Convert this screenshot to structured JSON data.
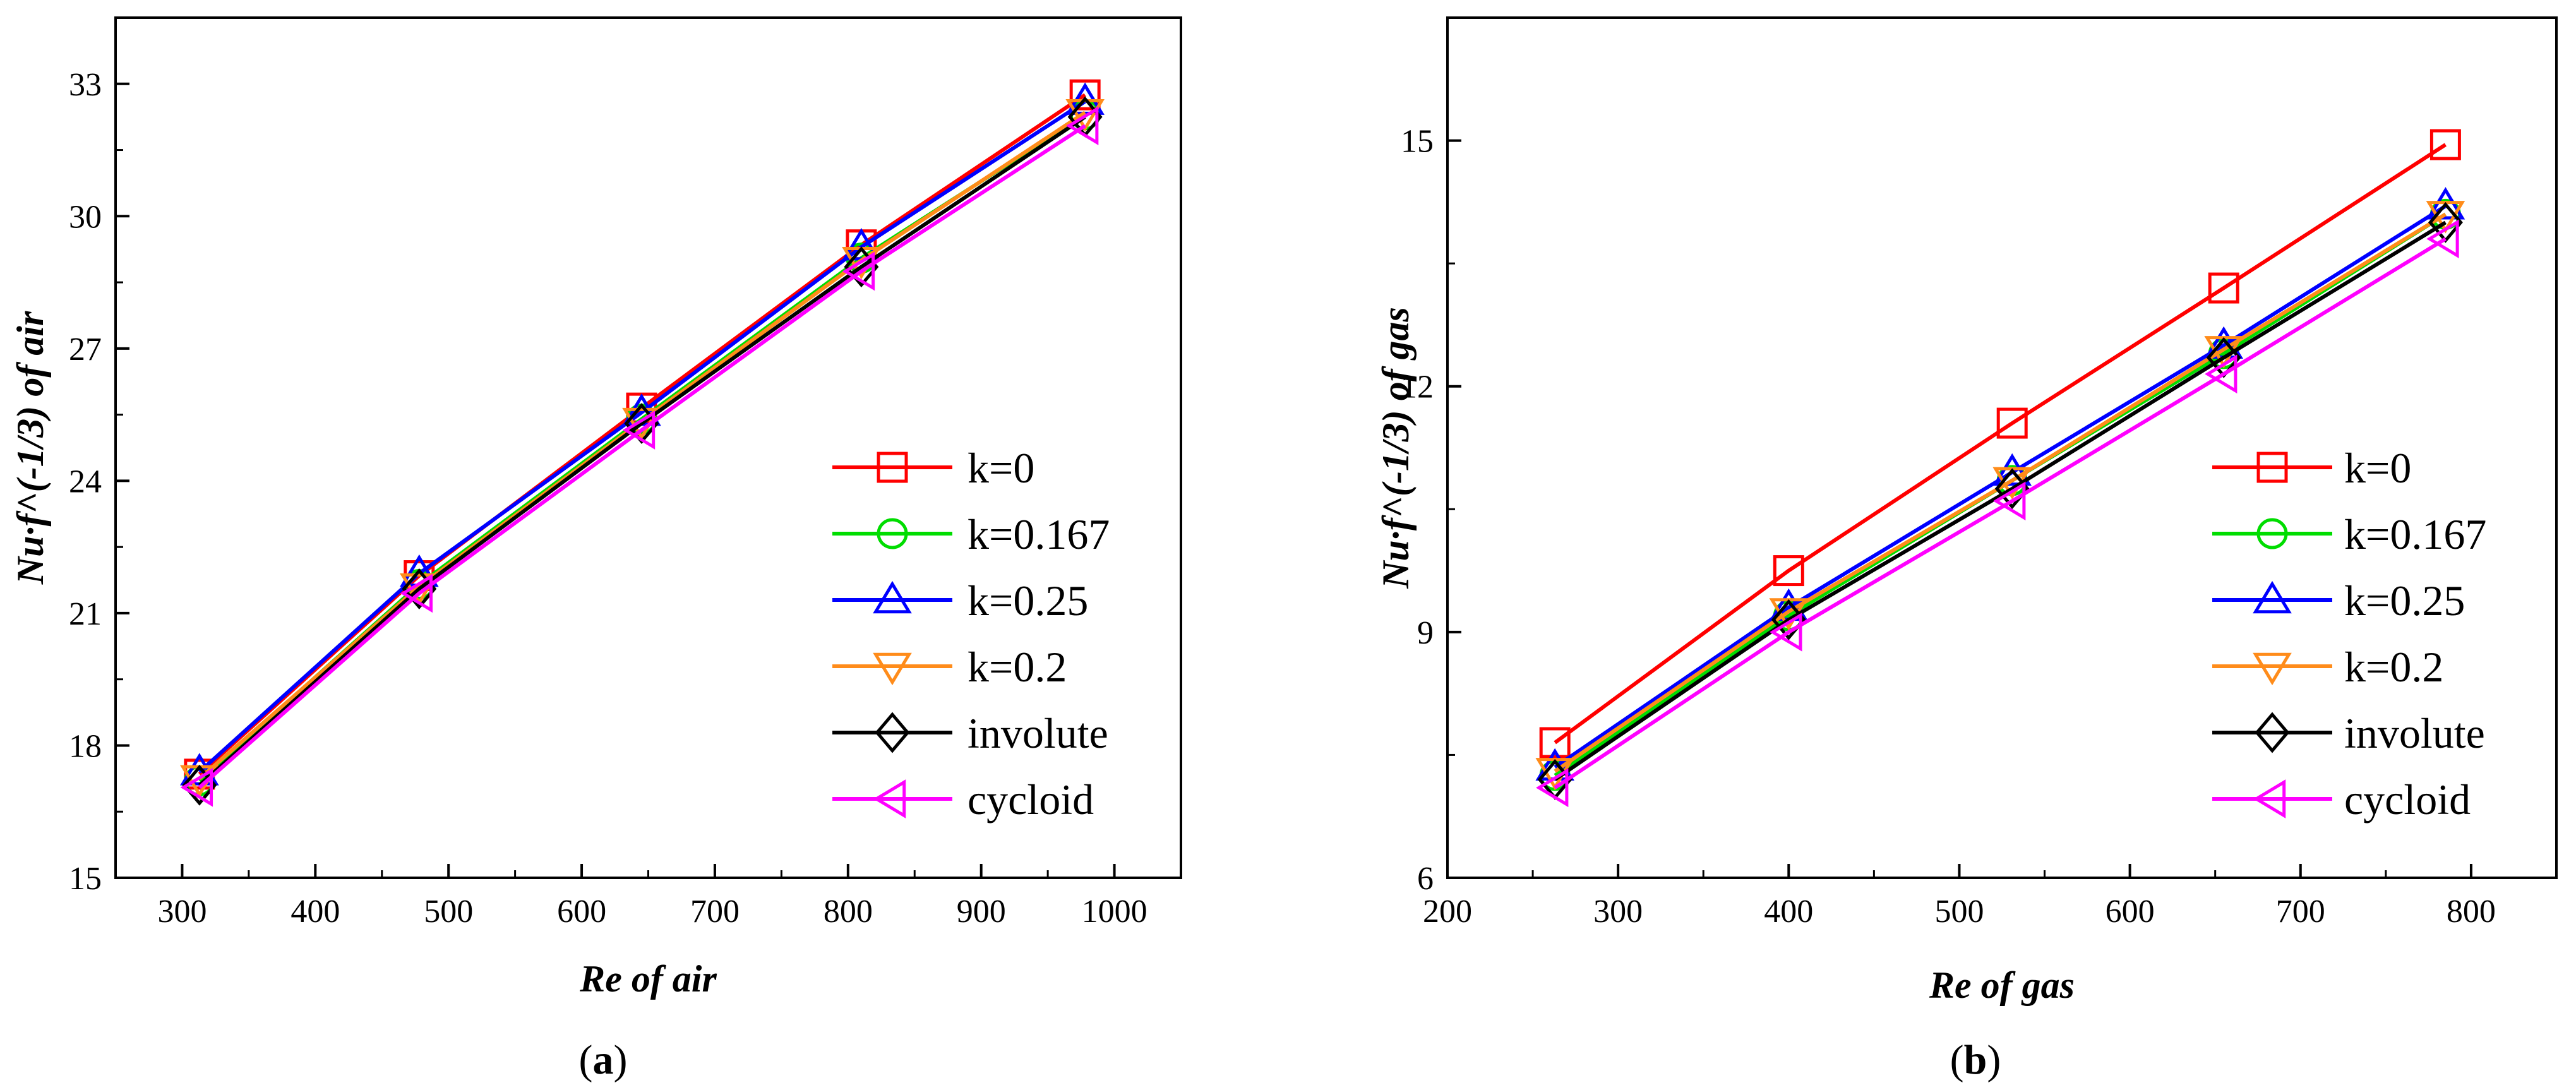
{
  "chart_data": [
    {
      "type": "line",
      "panel": "a",
      "caption_letter": "a",
      "title": "",
      "xlabel": "Re of air",
      "ylabel": "Nu·f^(-1/3) of air",
      "xlim": [
        250,
        1050
      ],
      "ylim": [
        15,
        34.5
      ],
      "xticks": [
        300,
        400,
        500,
        600,
        700,
        800,
        900,
        1000
      ],
      "yticks": [
        15,
        18,
        21,
        24,
        27,
        30,
        33
      ],
      "x": [
        313,
        478,
        645,
        810,
        978
      ],
      "legend_position": "bottom-right",
      "series": [
        {
          "name": "k=0",
          "color": "#ff0000",
          "marker": "square",
          "values": [
            17.35,
            21.85,
            25.65,
            29.35,
            32.75
          ]
        },
        {
          "name": "k=0.167",
          "color": "#00dd00",
          "marker": "circle",
          "values": [
            17.2,
            21.65,
            25.4,
            29.05,
            32.3
          ]
        },
        {
          "name": "k=0.25",
          "color": "#0000ff",
          "marker": "triangle-up",
          "values": [
            17.4,
            21.9,
            25.55,
            29.3,
            32.6
          ]
        },
        {
          "name": "k=0.2",
          "color": "#ff8c1a",
          "marker": "triangle-down",
          "values": [
            17.25,
            21.6,
            25.35,
            29.0,
            32.35
          ]
        },
        {
          "name": "involute",
          "color": "#000000",
          "marker": "diamond",
          "values": [
            17.1,
            21.55,
            25.3,
            28.85,
            32.25
          ]
        },
        {
          "name": "cycloid",
          "color": "#ff00ff",
          "marker": "triangle-left",
          "values": [
            17.05,
            21.45,
            25.15,
            28.75,
            32.05
          ]
        }
      ]
    },
    {
      "type": "line",
      "panel": "b",
      "caption_letter": "b",
      "title": "",
      "xlabel": "Re of gas",
      "ylabel": "Nu·f^(-1/3) of gas",
      "xlim": [
        200,
        850
      ],
      "ylim": [
        6,
        16.5
      ],
      "xticks": [
        200,
        300,
        400,
        500,
        600,
        700,
        800
      ],
      "yticks": [
        6,
        9,
        12,
        15
      ],
      "x": [
        263,
        400,
        531,
        655,
        785
      ],
      "legend_position": "bottom-right",
      "series": [
        {
          "name": "k=0",
          "color": "#ff0000",
          "marker": "square",
          "values": [
            7.65,
            9.75,
            11.55,
            13.2,
            14.95
          ]
        },
        {
          "name": "k=0.167",
          "color": "#00dd00",
          "marker": "circle",
          "values": [
            7.25,
            9.2,
            10.85,
            12.4,
            14.1
          ]
        },
        {
          "name": "k=0.25",
          "color": "#0000ff",
          "marker": "triangle-up",
          "values": [
            7.35,
            9.3,
            10.95,
            12.5,
            14.2
          ]
        },
        {
          "name": "k=0.2",
          "color": "#ff8c1a",
          "marker": "triangle-down",
          "values": [
            7.3,
            9.25,
            10.85,
            12.45,
            14.1
          ]
        },
        {
          "name": "involute",
          "color": "#000000",
          "marker": "diamond",
          "values": [
            7.2,
            9.15,
            10.75,
            12.35,
            14.0
          ]
        },
        {
          "name": "cycloid",
          "color": "#ff00ff",
          "marker": "triangle-left",
          "values": [
            7.1,
            9.0,
            10.6,
            12.15,
            13.8
          ]
        }
      ]
    }
  ]
}
